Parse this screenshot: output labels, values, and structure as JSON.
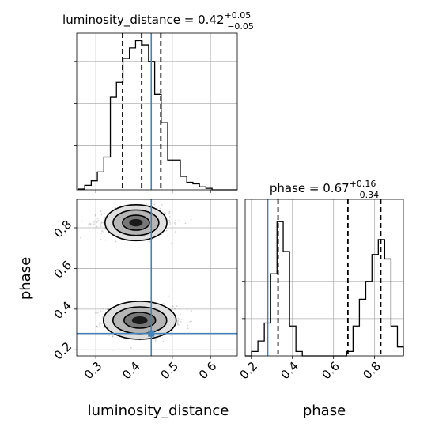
{
  "chart_data": {
    "type": "corner",
    "parameters": [
      "luminosity_distance",
      "phase"
    ],
    "truth": {
      "luminosity_distance": 0.445,
      "phase": 0.28
    },
    "panels": [
      {
        "id": "luminosity_distance-hist",
        "type": "histogram",
        "title_main": "luminosity_distance = 0.42",
        "title_sup": "+0.05",
        "title_sub": "−0.05",
        "xlim": [
          0.25,
          0.67
        ],
        "ylim": [
          0,
          1.0
        ],
        "quantiles": [
          0.37,
          0.42,
          0.47
        ],
        "truth": 0.445,
        "bins": [
          0.254,
          0.271,
          0.288,
          0.304,
          0.321,
          0.338,
          0.354,
          0.371,
          0.388,
          0.404,
          0.421,
          0.438,
          0.454,
          0.471,
          0.488,
          0.504,
          0.521,
          0.538,
          0.554,
          0.571,
          0.588,
          0.604,
          0.621,
          0.638,
          0.654,
          0.67
        ],
        "values": [
          0.005,
          0.03,
          0.06,
          0.12,
          0.22,
          0.62,
          0.72,
          0.88,
          0.95,
          1.0,
          0.97,
          0.86,
          0.64,
          0.45,
          0.2,
          0.2,
          0.09,
          0.05,
          0.04,
          0.02,
          0.01,
          0.0,
          0.0,
          0.0,
          0.0
        ],
        "yticks": [
          0.3,
          0.58,
          0.86
        ]
      },
      {
        "id": "phase-hist",
        "type": "histogram",
        "title_main": "phase = 0.67",
        "title_sup": "+0.16",
        "title_sub": "−0.34",
        "xlim": [
          0.17,
          0.94
        ],
        "ylim": [
          0,
          1.0
        ],
        "quantiles": [
          0.33,
          0.67,
          0.83
        ],
        "truth": 0.28,
        "bins": [
          0.17,
          0.201,
          0.232,
          0.263,
          0.294,
          0.325,
          0.355,
          0.386,
          0.417,
          0.448,
          0.479,
          0.51,
          0.54,
          0.571,
          0.602,
          0.633,
          0.664,
          0.695,
          0.726,
          0.757,
          0.787,
          0.818,
          0.849,
          0.88,
          0.911,
          0.94
        ],
        "values": [
          0.0,
          0.03,
          0.1,
          0.22,
          0.55,
          0.9,
          0.7,
          0.2,
          0.03,
          0.0,
          0.0,
          0.0,
          0.0,
          0.0,
          0.0,
          0.0,
          0.03,
          0.2,
          0.38,
          0.5,
          0.68,
          0.78,
          0.65,
          0.2,
          0.06
        ],
        "xticks": [
          0.2,
          0.4,
          0.6,
          0.8
        ],
        "xtick_labels": [
          "0.2",
          "0.4",
          "0.6",
          "0.8"
        ],
        "xlabel": "phase"
      },
      {
        "id": "2d-density",
        "type": "contour",
        "xlim": [
          0.25,
          0.67
        ],
        "ylim": [
          0.17,
          0.94
        ],
        "xticks": [
          0.3,
          0.4,
          0.5,
          0.6
        ],
        "xtick_labels": [
          "0.3",
          "0.4",
          "0.5",
          "0.6"
        ],
        "yticks": [
          0.2,
          0.4,
          0.6,
          0.8
        ],
        "ytick_labels": [
          "0.2",
          "0.4",
          "0.6",
          "0.8"
        ],
        "xlabel": "luminosity_distance",
        "ylabel": "phase",
        "modes": [
          {
            "x": 0.415,
            "y": 0.345,
            "weight": 0.6
          },
          {
            "x": 0.405,
            "y": 0.825,
            "weight": 0.4
          }
        ]
      }
    ]
  }
}
